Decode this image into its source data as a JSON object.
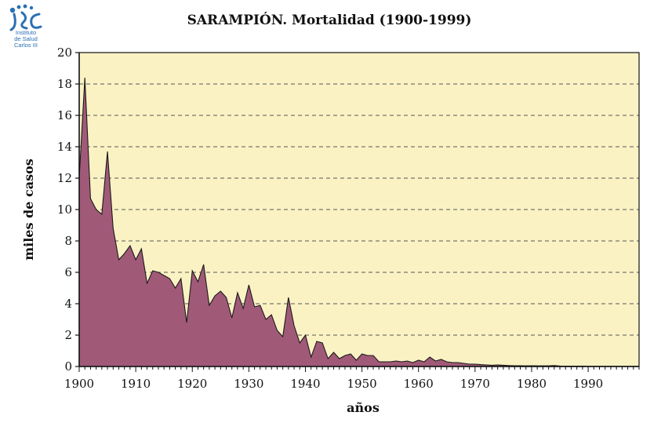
{
  "logo": {
    "name": "Instituto de Salud Carlos III",
    "name_lines": "Instituto\nde Salud\nCarlos III",
    "icon": "isc-logo",
    "color": "#2a6fb5"
  },
  "chart_data": {
    "type": "area",
    "title": "SARAMPIÓN. Mortalidad (1900-1999)",
    "xlabel": "años",
    "ylabel": "miles de casos",
    "xlim": [
      1900,
      1999
    ],
    "ylim": [
      0,
      20
    ],
    "x_ticks": [
      1900,
      1910,
      1920,
      1930,
      1940,
      1950,
      1960,
      1970,
      1980,
      1990
    ],
    "y_ticks": [
      0,
      2,
      4,
      6,
      8,
      10,
      12,
      14,
      16,
      18,
      20
    ],
    "grid": "horizontal dashed",
    "plot_background": "#fbf2c4",
    "fill_color": "#a05a78",
    "line_color": "#1a1a1a",
    "x": [
      1900,
      1901,
      1902,
      1903,
      1904,
      1905,
      1906,
      1907,
      1908,
      1909,
      1910,
      1911,
      1912,
      1913,
      1914,
      1915,
      1916,
      1917,
      1918,
      1919,
      1920,
      1921,
      1922,
      1923,
      1924,
      1925,
      1926,
      1927,
      1928,
      1929,
      1930,
      1931,
      1932,
      1933,
      1934,
      1935,
      1936,
      1937,
      1938,
      1939,
      1940,
      1941,
      1942,
      1943,
      1944,
      1945,
      1946,
      1947,
      1948,
      1949,
      1950,
      1951,
      1952,
      1953,
      1954,
      1955,
      1956,
      1957,
      1958,
      1959,
      1960,
      1961,
      1962,
      1963,
      1964,
      1965,
      1966,
      1967,
      1968,
      1969,
      1970,
      1971,
      1972,
      1973,
      1974,
      1975,
      1976,
      1977,
      1978,
      1979,
      1980,
      1981,
      1982,
      1983,
      1984,
      1985,
      1986,
      1987,
      1988,
      1989,
      1990,
      1991,
      1992,
      1993,
      1994,
      1995,
      1996,
      1997,
      1998,
      1999
    ],
    "values": [
      12.0,
      18.4,
      10.7,
      10.0,
      9.7,
      13.7,
      8.8,
      6.8,
      7.2,
      7.7,
      6.8,
      7.5,
      5.3,
      6.1,
      6.0,
      5.8,
      5.6,
      5.0,
      5.6,
      2.8,
      6.1,
      5.4,
      6.5,
      3.9,
      4.5,
      4.8,
      4.4,
      3.1,
      4.7,
      3.7,
      5.2,
      3.8,
      3.9,
      3.0,
      3.3,
      2.3,
      1.9,
      4.4,
      2.6,
      1.5,
      2.0,
      0.6,
      1.6,
      1.5,
      0.5,
      0.9,
      0.5,
      0.7,
      0.8,
      0.4,
      0.8,
      0.7,
      0.7,
      0.3,
      0.3,
      0.3,
      0.35,
      0.3,
      0.35,
      0.25,
      0.4,
      0.3,
      0.6,
      0.35,
      0.45,
      0.3,
      0.25,
      0.25,
      0.2,
      0.15,
      0.15,
      0.12,
      0.1,
      0.08,
      0.1,
      0.08,
      0.06,
      0.05,
      0.05,
      0.04,
      0.05,
      0.04,
      0.04,
      0.04,
      0.06,
      0.03,
      0.02,
      0.02,
      0.02,
      0.02,
      0.01,
      0.01,
      0.01,
      0.01,
      0.01,
      0.01,
      0.01,
      0.01,
      0.01,
      0.01
    ]
  }
}
